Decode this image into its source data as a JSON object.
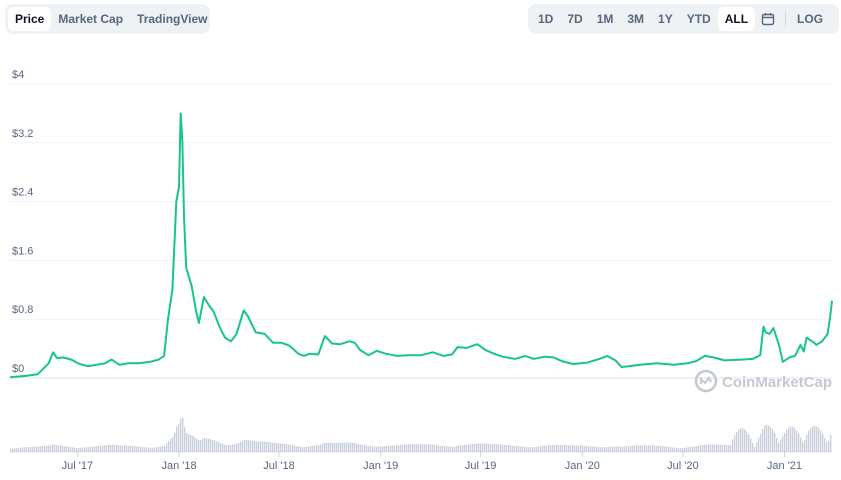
{
  "toolbar": {
    "left_tabs": [
      "Price",
      "Market Cap",
      "TradingView"
    ],
    "active_left": "Price",
    "range_tabs": [
      "1D",
      "7D",
      "1M",
      "3M",
      "1Y",
      "YTD",
      "ALL"
    ],
    "active_range": "ALL",
    "calendar_icon": "calendar-icon",
    "log_label": "LOG"
  },
  "watermark": {
    "text": "CoinMarketCap",
    "icon": "coinmarketcap-logo"
  },
  "colors": {
    "line": "#16c784",
    "volume": "#c9cfdb",
    "grid": "#eff2f5"
  },
  "chart_data": {
    "type": "line",
    "title": "",
    "xlabel": "",
    "ylabel": "",
    "ylim": [
      0,
      4
    ],
    "xlim": [
      "2017-03-01",
      "2021-03-28"
    ],
    "y_ticks": [
      "$0",
      "$0.8",
      "$1.6",
      "$2.4",
      "$3.2",
      "$4"
    ],
    "y_tick_values": [
      0,
      0.8,
      1.6,
      2.4,
      3.2,
      4
    ],
    "x_ticks": [
      "Jul '17",
      "Jan '18",
      "Jul '18",
      "Jan '19",
      "Jul '19",
      "Jan '20",
      "Jul '20",
      "Jan '21"
    ],
    "x_tick_dates": [
      "2017-07-01",
      "2018-01-01",
      "2018-07-01",
      "2019-01-01",
      "2019-07-01",
      "2020-01-01",
      "2020-07-01",
      "2021-01-01"
    ],
    "grid": true,
    "series": [
      {
        "values": [
          [
            "2017-03-01",
            0.01
          ],
          [
            "2017-04-01",
            0.03
          ],
          [
            "2017-04-20",
            0.05
          ],
          [
            "2017-05-10",
            0.2
          ],
          [
            "2017-05-18",
            0.35
          ],
          [
            "2017-05-25",
            0.27
          ],
          [
            "2017-06-05",
            0.28
          ],
          [
            "2017-06-20",
            0.25
          ],
          [
            "2017-07-05",
            0.19
          ],
          [
            "2017-07-20",
            0.16
          ],
          [
            "2017-08-05",
            0.18
          ],
          [
            "2017-08-20",
            0.2
          ],
          [
            "2017-09-01",
            0.25
          ],
          [
            "2017-09-15",
            0.18
          ],
          [
            "2017-10-01",
            0.2
          ],
          [
            "2017-10-20",
            0.2
          ],
          [
            "2017-11-10",
            0.22
          ],
          [
            "2017-11-25",
            0.25
          ],
          [
            "2017-12-05",
            0.3
          ],
          [
            "2017-12-12",
            0.8
          ],
          [
            "2017-12-20",
            1.2
          ],
          [
            "2017-12-27",
            2.4
          ],
          [
            "2018-01-01",
            2.6
          ],
          [
            "2018-01-04",
            3.6
          ],
          [
            "2018-01-07",
            3.2
          ],
          [
            "2018-01-10",
            2.2
          ],
          [
            "2018-01-14",
            1.5
          ],
          [
            "2018-01-18",
            1.4
          ],
          [
            "2018-01-24",
            1.25
          ],
          [
            "2018-02-01",
            0.9
          ],
          [
            "2018-02-06",
            0.75
          ],
          [
            "2018-02-15",
            1.1
          ],
          [
            "2018-02-25",
            0.98
          ],
          [
            "2018-03-05",
            0.9
          ],
          [
            "2018-03-15",
            0.7
          ],
          [
            "2018-03-25",
            0.55
          ],
          [
            "2018-04-05",
            0.5
          ],
          [
            "2018-04-15",
            0.6
          ],
          [
            "2018-04-28",
            0.92
          ],
          [
            "2018-05-05",
            0.85
          ],
          [
            "2018-05-20",
            0.62
          ],
          [
            "2018-06-05",
            0.6
          ],
          [
            "2018-06-20",
            0.48
          ],
          [
            "2018-07-05",
            0.48
          ],
          [
            "2018-07-20",
            0.44
          ],
          [
            "2018-08-05",
            0.33
          ],
          [
            "2018-08-15",
            0.3
          ],
          [
            "2018-08-25",
            0.33
          ],
          [
            "2018-09-10",
            0.32
          ],
          [
            "2018-09-22",
            0.57
          ],
          [
            "2018-10-05",
            0.47
          ],
          [
            "2018-10-20",
            0.46
          ],
          [
            "2018-11-05",
            0.5
          ],
          [
            "2018-11-15",
            0.48
          ],
          [
            "2018-11-25",
            0.38
          ],
          [
            "2018-12-10",
            0.31
          ],
          [
            "2018-12-25",
            0.37
          ],
          [
            "2019-01-10",
            0.33
          ],
          [
            "2019-01-31",
            0.3
          ],
          [
            "2019-02-20",
            0.31
          ],
          [
            "2019-03-15",
            0.31
          ],
          [
            "2019-04-05",
            0.35
          ],
          [
            "2019-04-25",
            0.3
          ],
          [
            "2019-05-10",
            0.32
          ],
          [
            "2019-05-20",
            0.42
          ],
          [
            "2019-06-05",
            0.41
          ],
          [
            "2019-06-25",
            0.46
          ],
          [
            "2019-07-10",
            0.38
          ],
          [
            "2019-07-25",
            0.33
          ],
          [
            "2019-08-10",
            0.29
          ],
          [
            "2019-09-01",
            0.26
          ],
          [
            "2019-09-20",
            0.3
          ],
          [
            "2019-10-05",
            0.26
          ],
          [
            "2019-10-25",
            0.29
          ],
          [
            "2019-11-10",
            0.28
          ],
          [
            "2019-11-25",
            0.23
          ],
          [
            "2019-12-15",
            0.19
          ],
          [
            "2020-01-10",
            0.21
          ],
          [
            "2020-02-01",
            0.26
          ],
          [
            "2020-02-15",
            0.3
          ],
          [
            "2020-03-01",
            0.24
          ],
          [
            "2020-03-12",
            0.15
          ],
          [
            "2020-03-25",
            0.16
          ],
          [
            "2020-04-15",
            0.18
          ],
          [
            "2020-05-15",
            0.2
          ],
          [
            "2020-06-15",
            0.18
          ],
          [
            "2020-07-10",
            0.2
          ],
          [
            "2020-07-25",
            0.23
          ],
          [
            "2020-08-10",
            0.3
          ],
          [
            "2020-08-25",
            0.28
          ],
          [
            "2020-09-15",
            0.24
          ],
          [
            "2020-10-15",
            0.25
          ],
          [
            "2020-11-05",
            0.26
          ],
          [
            "2020-11-18",
            0.31
          ],
          [
            "2020-11-24",
            0.7
          ],
          [
            "2020-11-28",
            0.62
          ],
          [
            "2020-12-05",
            0.6
          ],
          [
            "2020-12-12",
            0.68
          ],
          [
            "2020-12-22",
            0.45
          ],
          [
            "2020-12-29",
            0.22
          ],
          [
            "2021-01-10",
            0.28
          ],
          [
            "2021-01-20",
            0.3
          ],
          [
            "2021-01-30",
            0.45
          ],
          [
            "2021-02-05",
            0.36
          ],
          [
            "2021-02-10",
            0.55
          ],
          [
            "2021-02-20",
            0.5
          ],
          [
            "2021-02-28",
            0.45
          ],
          [
            "2021-03-10",
            0.5
          ],
          [
            "2021-03-20",
            0.6
          ],
          [
            "2021-03-25",
            0.85
          ],
          [
            "2021-03-28",
            1.05
          ]
        ]
      }
    ]
  }
}
